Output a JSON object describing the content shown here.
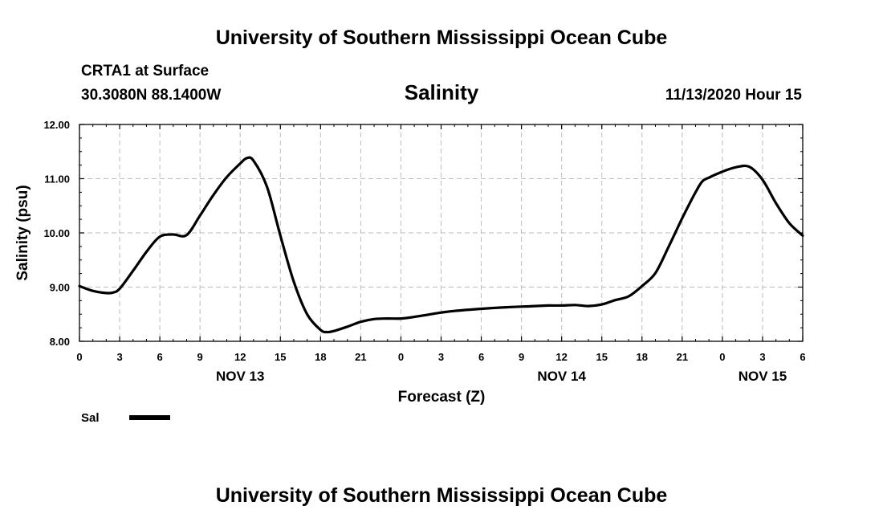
{
  "header": {
    "institution": "University of Southern Mississippi Ocean Cube",
    "station": "CRTA1 at Surface",
    "coords": "30.3080N 88.1400W",
    "timestamp": "11/13/2020 Hour 15"
  },
  "footer": {
    "institution": "University of Southern Mississippi Ocean Cube"
  },
  "chart_data": {
    "type": "line",
    "title": "Salinity",
    "xlabel": "Forecast (Z)",
    "ylabel": "Salinity (psu)",
    "xlim": [
      0,
      54
    ],
    "ylim": [
      8.0,
      12.0
    ],
    "grid": true,
    "x_ticks": [
      {
        "hour": 0,
        "label": "0"
      },
      {
        "hour": 3,
        "label": "3"
      },
      {
        "hour": 6,
        "label": "6"
      },
      {
        "hour": 9,
        "label": "9"
      },
      {
        "hour": 12,
        "label": "12"
      },
      {
        "hour": 15,
        "label": "15"
      },
      {
        "hour": 18,
        "label": "18"
      },
      {
        "hour": 21,
        "label": "21"
      },
      {
        "hour": 24,
        "label": "0"
      },
      {
        "hour": 27,
        "label": "3"
      },
      {
        "hour": 30,
        "label": "6"
      },
      {
        "hour": 33,
        "label": "9"
      },
      {
        "hour": 36,
        "label": "12"
      },
      {
        "hour": 39,
        "label": "15"
      },
      {
        "hour": 42,
        "label": "18"
      },
      {
        "hour": 45,
        "label": "21"
      },
      {
        "hour": 48,
        "label": "0"
      },
      {
        "hour": 51,
        "label": "3"
      },
      {
        "hour": 54,
        "label": "6"
      }
    ],
    "y_ticks": [
      {
        "value": 8.0,
        "label": "8.00"
      },
      {
        "value": 9.0,
        "label": "9.00"
      },
      {
        "value": 10.0,
        "label": "10.00"
      },
      {
        "value": 11.0,
        "label": "11.00"
      },
      {
        "value": 12.0,
        "label": "12.00"
      }
    ],
    "date_labels": [
      {
        "hour": 12,
        "label": "NOV 13"
      },
      {
        "hour": 36,
        "label": "NOV 14"
      },
      {
        "hour": 51,
        "label": "NOV 15"
      }
    ],
    "legend": {
      "position": "bottom-left",
      "label": "Sal"
    },
    "series": [
      {
        "name": "Sal",
        "x": [
          0,
          1,
          2,
          2.5,
          3,
          4,
          5,
          6,
          7,
          8,
          9,
          10,
          11,
          12,
          12.5,
          13,
          14,
          15,
          16,
          17,
          18,
          18.5,
          19,
          20,
          21,
          22,
          23,
          24,
          25,
          26,
          27,
          28,
          30,
          32,
          33,
          34,
          35,
          36,
          37,
          38,
          39,
          40,
          41,
          42,
          43,
          44,
          45,
          46,
          46.5,
          47,
          48,
          49,
          50,
          51,
          52,
          53,
          54
        ],
        "values": [
          9.02,
          8.93,
          8.89,
          8.9,
          8.97,
          9.3,
          9.65,
          9.93,
          9.97,
          9.96,
          10.32,
          10.7,
          11.03,
          11.28,
          11.38,
          11.33,
          10.85,
          9.95,
          9.1,
          8.5,
          8.21,
          8.17,
          8.19,
          8.27,
          8.36,
          8.41,
          8.42,
          8.42,
          8.45,
          8.49,
          8.53,
          8.56,
          8.6,
          8.63,
          8.64,
          8.65,
          8.66,
          8.66,
          8.67,
          8.65,
          8.68,
          8.76,
          8.83,
          9.02,
          9.26,
          9.75,
          10.27,
          10.75,
          10.95,
          11.02,
          11.13,
          11.21,
          11.22,
          10.98,
          10.55,
          10.18,
          9.95
        ]
      }
    ]
  }
}
